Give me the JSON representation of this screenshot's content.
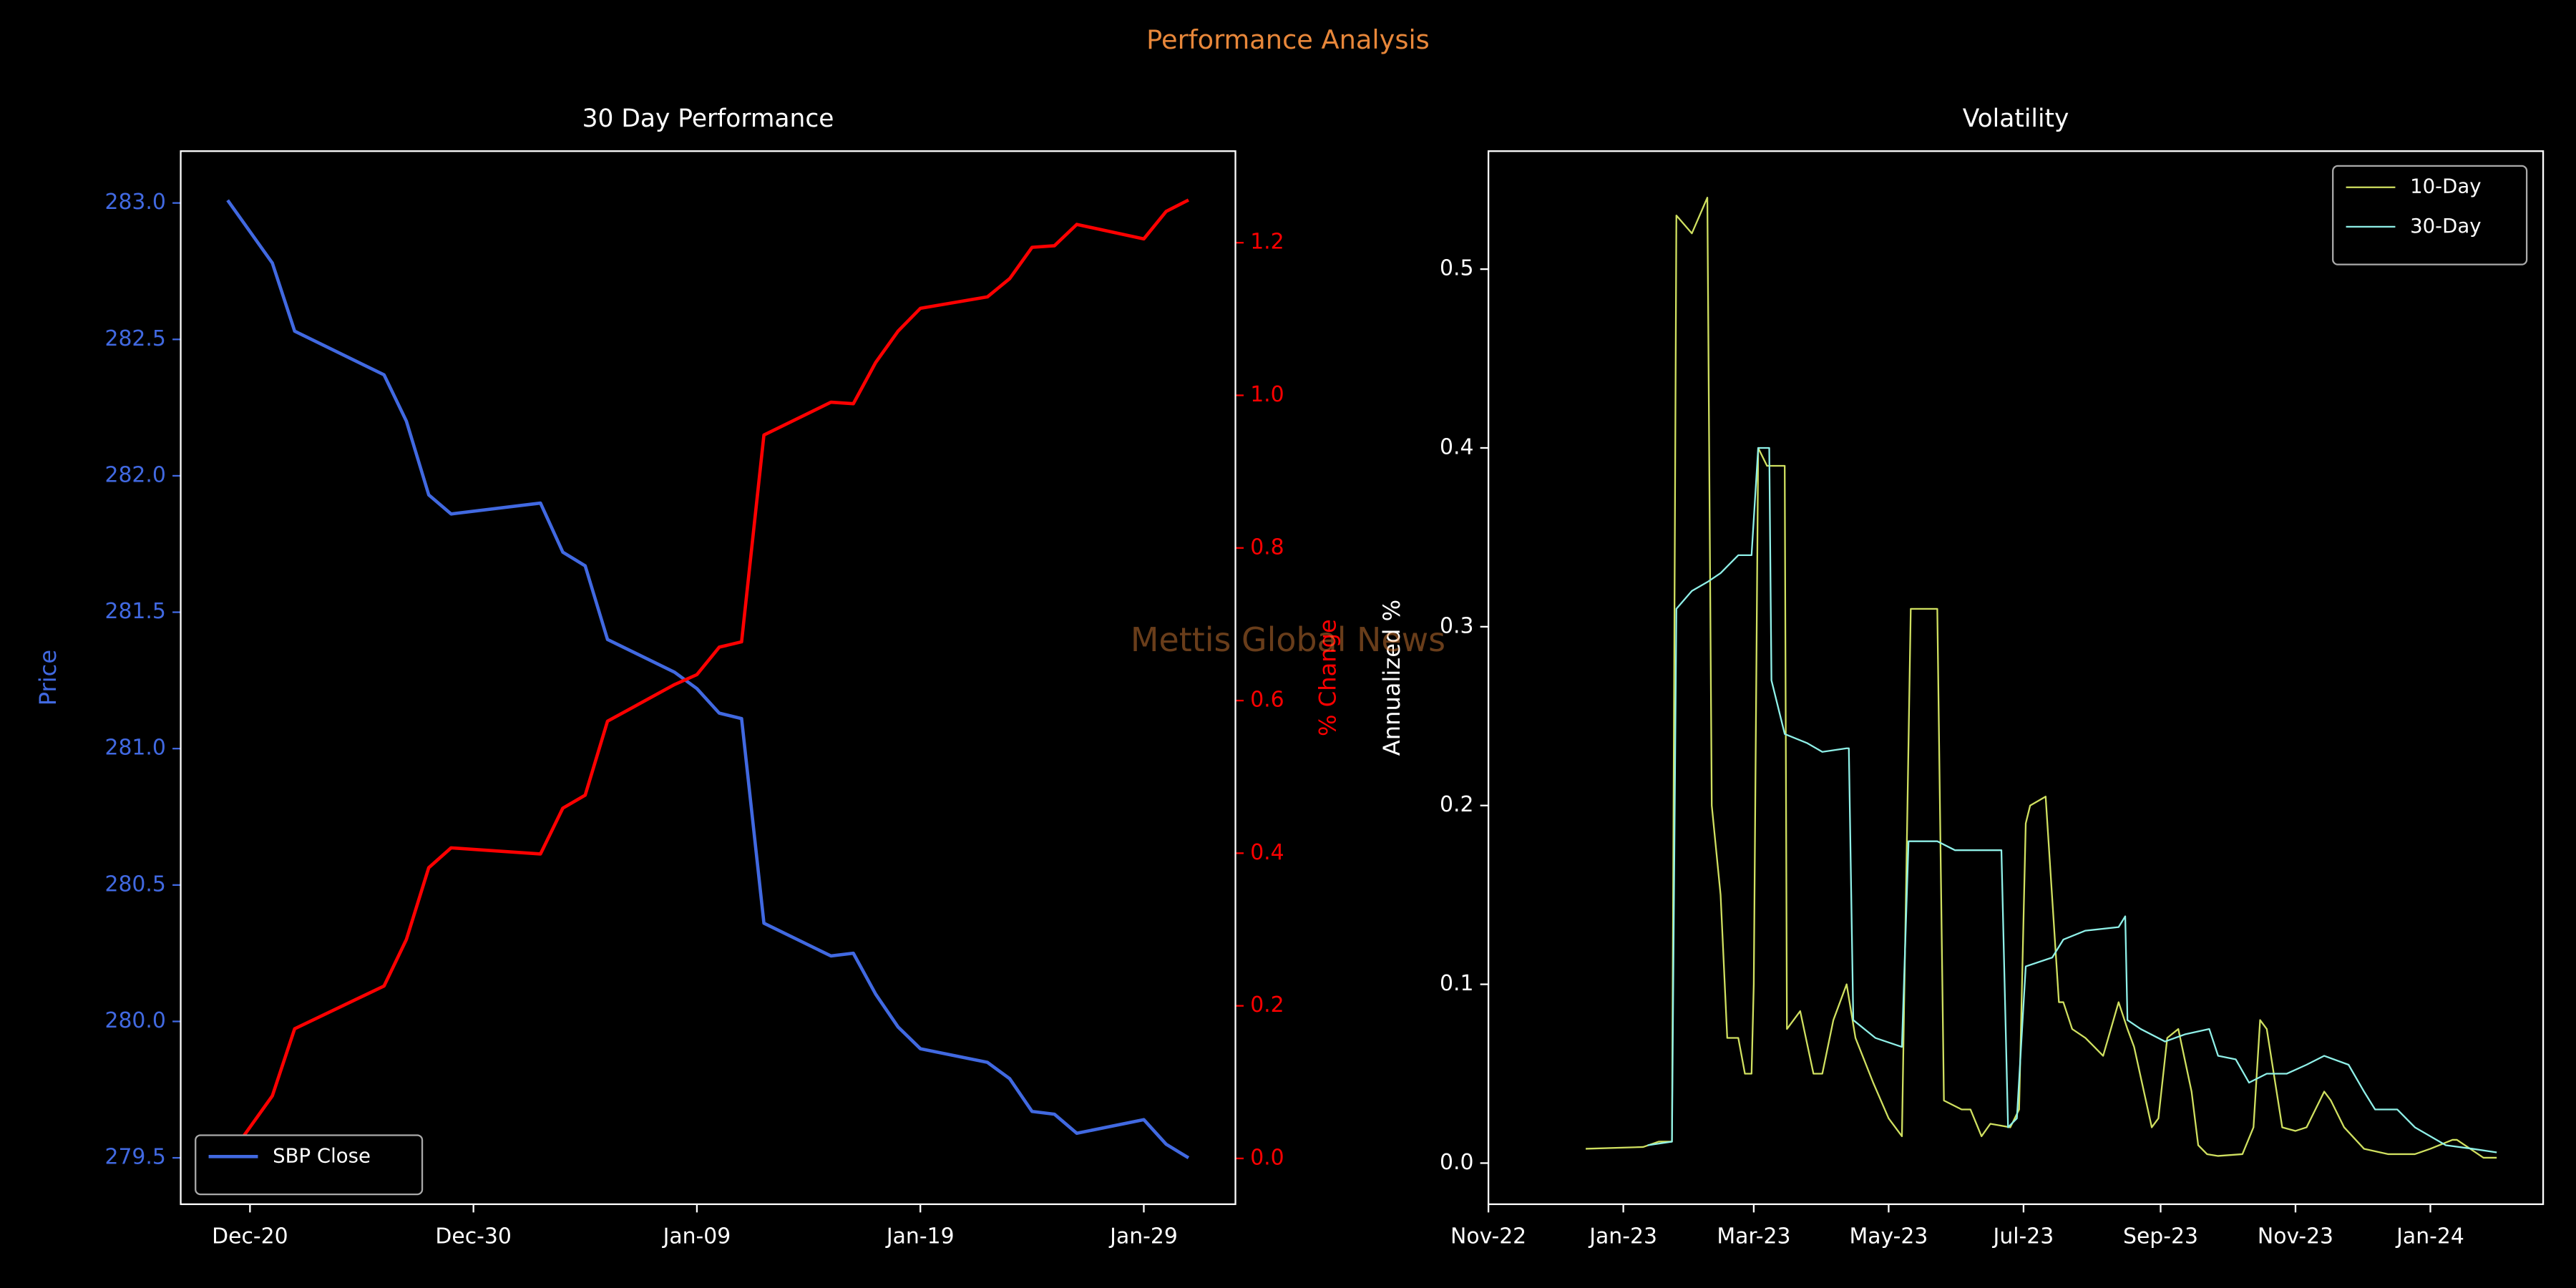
{
  "title": "Performance Analysis",
  "watermark": "Mettis Global News",
  "chart_data": [
    {
      "type": "line",
      "title": "30 Day Performance",
      "ylabel": "Price",
      "y2label": "% Change",
      "x": [
        19710,
        19712,
        19713,
        19717,
        19718,
        19719,
        19720,
        19724,
        19725,
        19726,
        19727,
        19730,
        19731,
        19732,
        19733,
        19734,
        19737,
        19738,
        19739,
        19740,
        19741,
        19744,
        19745,
        19746,
        19747,
        19748,
        19751,
        19752,
        19753
      ],
      "xlim": [
        19707.9,
        19755.1
      ],
      "xticks": [
        {
          "value": 19711,
          "label": "Dec-20"
        },
        {
          "value": 19721,
          "label": "Dec-30"
        },
        {
          "value": 19731,
          "label": "Jan-09"
        },
        {
          "value": 19741,
          "label": "Jan-19"
        },
        {
          "value": 19751,
          "label": "Jan-29"
        }
      ],
      "ylim": [
        279.33,
        283.19
      ],
      "yticks": [
        279.5,
        {
          "value": 280,
          "label": "280.0"
        },
        280.5,
        {
          "value": 281,
          "label": "281.0"
        },
        281.5,
        {
          "value": 282,
          "label": "282.0"
        },
        282.5,
        {
          "value": 283,
          "label": "283.0"
        }
      ],
      "y2lim": [
        -0.06,
        1.32
      ],
      "y2ticks": [
        {
          "value": 0,
          "label": "0.0"
        },
        0.2,
        0.4,
        0.6,
        0.8,
        {
          "value": 1,
          "label": "1.0"
        },
        1.2
      ],
      "legend": "lower left",
      "series": [
        {
          "name": "SBP Close",
          "color": "#4169e1",
          "values": [
            283.01,
            282.78,
            282.53,
            282.37,
            282.2,
            281.93,
            281.86,
            281.9,
            281.72,
            281.67,
            281.4,
            281.28,
            281.22,
            281.13,
            281.11,
            280.36,
            280.24,
            280.25,
            280.1,
            279.98,
            279.9,
            279.85,
            279.79,
            279.67,
            279.66,
            279.59,
            279.64,
            279.55,
            279.5
          ]
        },
        {
          "color": "#ff0000",
          "axis": "y2",
          "values": [
            0,
            0.082,
            0.17,
            0.226,
            0.287,
            0.381,
            0.407,
            0.399,
            0.459,
            0.476,
            0.573,
            0.621,
            0.634,
            0.67,
            0.677,
            0.948,
            0.991,
            0.989,
            1.043,
            1.084,
            1.114,
            1.129,
            1.153,
            1.194,
            1.196,
            1.224,
            1.205,
            1.241,
            1.256
          ]
        }
      ]
    },
    {
      "type": "line",
      "title": "Volatility",
      "ylabel": "Annualized %",
      "xlim": [
        19297,
        19774
      ],
      "xticks": [
        {
          "value": 19297,
          "label": "Nov-22"
        },
        {
          "value": 19358,
          "label": "Jan-23"
        },
        {
          "value": 19417,
          "label": "Mar-23"
        },
        {
          "value": 19478,
          "label": "May-23"
        },
        {
          "value": 19539,
          "label": "Jul-23"
        },
        {
          "value": 19601,
          "label": "Sep-23"
        },
        {
          "value": 19662,
          "label": "Nov-23"
        },
        {
          "value": 19723,
          "label": "Jan-24"
        }
      ],
      "ylim": [
        -0.023,
        0.566
      ],
      "yticks": [
        {
          "value": 0,
          "label": "0.0"
        },
        0.1,
        0.2,
        0.3,
        0.4,
        0.5
      ],
      "legend": "upper right",
      "series": [
        {
          "name": "10-Day",
          "color": "#d0e060",
          "x": [
            19341,
            19367,
            19374,
            19380,
            19382,
            19389,
            19396,
            19398,
            19402,
            19405,
            19410,
            19413,
            19416,
            19417,
            19419,
            19423,
            19431,
            19432,
            19438,
            19444,
            19448,
            19453,
            19459,
            19463,
            19471,
            19478,
            19484,
            19488,
            19494,
            19500,
            19503,
            19511,
            19515,
            19520,
            19524,
            19533,
            19537,
            19540,
            19542,
            19549,
            19555,
            19557,
            19561,
            19567,
            19575,
            19582,
            19586,
            19589,
            19597,
            19600,
            19604,
            19609,
            19615,
            19618,
            19622,
            19627,
            19638,
            19643,
            19646,
            19649,
            19656,
            19662,
            19667,
            19675,
            19678,
            19684,
            19693,
            19704,
            19716,
            19723,
            19733,
            19735,
            19747,
            19748,
            19753
          ],
          "values": [
            0.008,
            0.009,
            0.012,
            0.012,
            0.53,
            0.52,
            0.54,
            0.2,
            0.15,
            0.07,
            0.07,
            0.05,
            0.05,
            0.1,
            0.4,
            0.39,
            0.39,
            0.075,
            0.085,
            0.05,
            0.05,
            0.08,
            0.1,
            0.07,
            0.045,
            0.025,
            0.015,
            0.31,
            0.31,
            0.31,
            0.035,
            0.03,
            0.03,
            0.015,
            0.022,
            0.02,
            0.03,
            0.19,
            0.2,
            0.205,
            0.09,
            0.09,
            0.075,
            0.07,
            0.06,
            0.09,
            0.075,
            0.065,
            0.02,
            0.025,
            0.07,
            0.075,
            0.04,
            0.01,
            0.005,
            0.004,
            0.005,
            0.02,
            0.08,
            0.075,
            0.02,
            0.018,
            0.02,
            0.04,
            0.035,
            0.02,
            0.008,
            0.005,
            0.005,
            0.008,
            0.013,
            0.013,
            0.003,
            0.003,
            0.003
          ]
        },
        {
          "name": "30-Day",
          "color": "#8ff0e8",
          "x": [
            19369,
            19380,
            19382,
            19389,
            19396,
            19402,
            19410,
            19416,
            19419,
            19424,
            19425,
            19431,
            19441,
            19448,
            19459,
            19460,
            19462,
            19472,
            19484,
            19487,
            19500,
            19508,
            19529,
            19532,
            19536,
            19540,
            19552,
            19557,
            19567,
            19582,
            19585,
            19586,
            19592,
            19603,
            19612,
            19623,
            19627,
            19635,
            19641,
            19649,
            19658,
            19667,
            19675,
            19686,
            19693,
            19698,
            19708,
            19716,
            19730,
            19742,
            19753
          ],
          "values": [
            0.01,
            0.012,
            0.31,
            0.32,
            0.325,
            0.33,
            0.34,
            0.34,
            0.4,
            0.4,
            0.27,
            0.24,
            0.235,
            0.23,
            0.232,
            0.232,
            0.08,
            0.07,
            0.065,
            0.18,
            0.18,
            0.175,
            0.175,
            0.02,
            0.025,
            0.11,
            0.115,
            0.125,
            0.13,
            0.132,
            0.138,
            0.08,
            0.075,
            0.068,
            0.072,
            0.075,
            0.06,
            0.058,
            0.045,
            0.05,
            0.05,
            0.055,
            0.06,
            0.055,
            0.04,
            0.03,
            0.03,
            0.02,
            0.01,
            0.008,
            0.006
          ]
        }
      ]
    }
  ]
}
